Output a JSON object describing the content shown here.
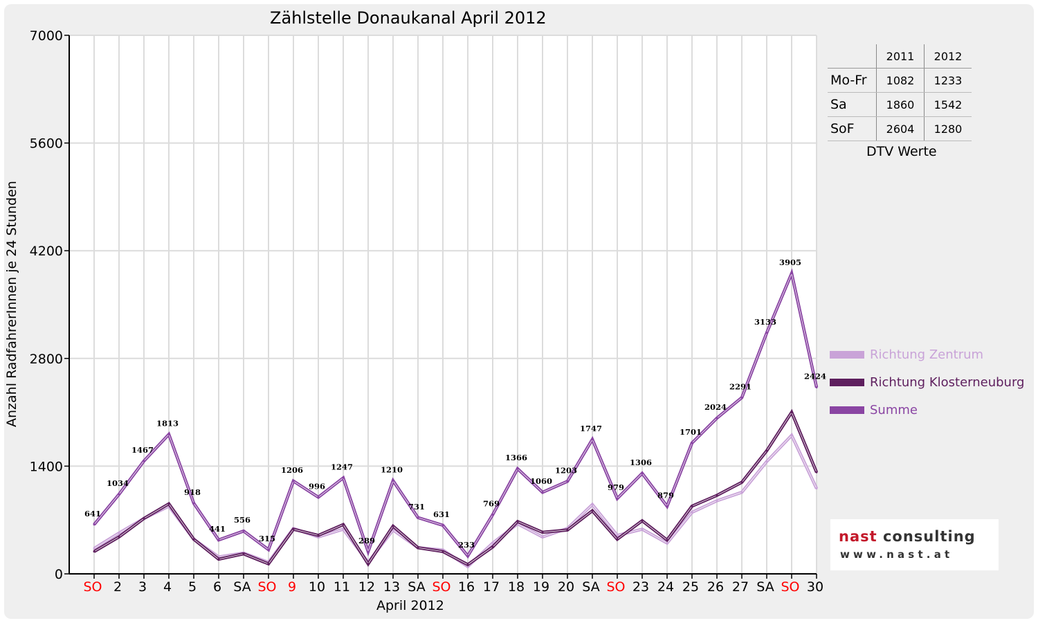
{
  "chart_data": {
    "type": "line",
    "title": "Zählstelle Donaukanal April 2012",
    "xlabel": "April 2012",
    "ylabel": "Anzahl RadfahrerInnen je 24 Stunden",
    "ylim": [
      0,
      7000
    ],
    "yticks": [
      0,
      1400,
      2800,
      4200,
      5600,
      7000
    ],
    "grid": true,
    "legend_position": "right",
    "categories": [
      "SO",
      "2",
      "3",
      "4",
      "5",
      "6",
      "SA",
      "SO",
      "9",
      "10",
      "11",
      "12",
      "13",
      "SA",
      "SO",
      "16",
      "17",
      "18",
      "19",
      "20",
      "SA",
      "SO",
      "23",
      "24",
      "25",
      "26",
      "27",
      "SA",
      "SO",
      "30"
    ],
    "red_categories": [
      0,
      7,
      8,
      14,
      21,
      28
    ],
    "series": [
      {
        "name": "Richtung Zentrum",
        "color": "#c9a3d8",
        "values": [
          330,
          530,
          720,
          880,
          450,
          220,
          270,
          150,
          590,
          480,
          580,
          150,
          570,
          340,
          310,
          95,
          400,
          650,
          480,
          590,
          900,
          500,
          580,
          400,
          800,
          950,
          1060,
          1460,
          1800,
          1110
        ]
      },
      {
        "name": "Richtung Klosterneuburg",
        "color": "#5e1f5e",
        "values": [
          290,
          480,
          720,
          910,
          450,
          190,
          260,
          130,
          580,
          500,
          640,
          130,
          620,
          340,
          290,
          120,
          350,
          680,
          540,
          570,
          820,
          450,
          690,
          440,
          880,
          1020,
          1190,
          1600,
          2100,
          1320
        ]
      },
      {
        "name": "Summe",
        "color": "#8a45a3",
        "values": [
          641,
          1034,
          1467,
          1813,
          918,
          441,
          556,
          315,
          1206,
          996,
          1247,
          289,
          1210,
          731,
          631,
          233,
          769,
          1366,
          1060,
          1203,
          1747,
          979,
          1306,
          879,
          1701,
          2024,
          2291,
          3133,
          3905,
          2424
        ]
      }
    ],
    "data_labels": [
      "641",
      "1034",
      "1467",
      "1813",
      "918",
      "441",
      "556",
      "315",
      "1206",
      "996",
      "1247",
      "289",
      "1210",
      "731",
      "631",
      "233",
      "769",
      "1366",
      "1060",
      "1203",
      "1747",
      "979",
      "1306",
      "879",
      "1701",
      "2024",
      "2291",
      "3133",
      "3905",
      "2424"
    ]
  },
  "dtv_table": {
    "headers": [
      "2011",
      "2012"
    ],
    "rows": [
      {
        "label": "Mo-Fr",
        "v2011": "1082",
        "v2012": "1233"
      },
      {
        "label": "Sa",
        "v2011": "1860",
        "v2012": "1542"
      },
      {
        "label": "SoF",
        "v2011": "2604",
        "v2012": "1280"
      }
    ],
    "caption": "DTV Werte"
  },
  "logo": {
    "word1": "nast",
    "word2": "consulting",
    "url": "www.nast.at",
    "brand_red": "#c3182a",
    "brand_gray": "#333333"
  }
}
